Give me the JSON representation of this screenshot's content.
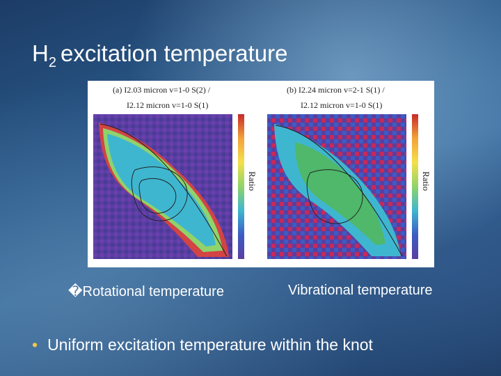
{
  "slide": {
    "title_main": "H",
    "title_sub": "2",
    "title_rest": "excitation temperature",
    "captions": {
      "left": "�Rotational temperature",
      "right": "Vibrational temperature"
    },
    "bullet": "Uniform excitation temperature within the knot"
  },
  "figure": {
    "panel_a": {
      "label_top": "(a) I2.03 micron v=1-0 S(2) /",
      "label_bottom": "I2.12 micron v=1-0 S(1)",
      "colorbar_label": "Ratio"
    },
    "panel_b": {
      "label_top": "(b) I2.24 micron v=2-1 S(1) /",
      "label_bottom": "I2.12 micron v=1-0 S(1)",
      "colorbar_label": "Ratio"
    }
  },
  "colors": {
    "title": "#ffffff",
    "bullet_dot": "#f3c64a",
    "map_background": "#5a3fa0",
    "map_knot": "#3fb6d0"
  }
}
